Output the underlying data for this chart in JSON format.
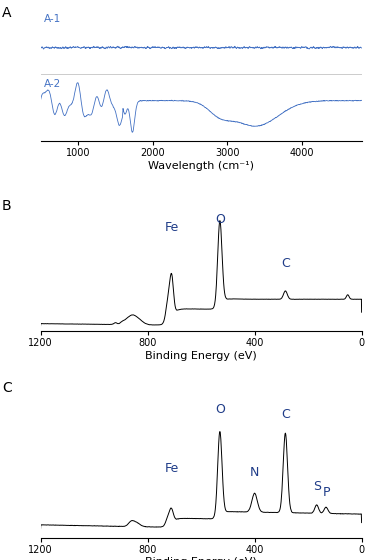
{
  "panel_A_label": "A",
  "panel_B_label": "B",
  "panel_C_label": "C",
  "line_color_A": "#4472C4",
  "line_color_BC": "#000000",
  "label_color": "#1F3C88",
  "wavelength_xlabel": "Wavelength (cm⁻¹)",
  "binding_xlabel": "Binding Energy (eV)",
  "wavelength_xlim": [
    500,
    4800
  ],
  "wavelength_xticks": [
    1000,
    2000,
    3000,
    4000
  ],
  "binding_xticks": [
    1200,
    800,
    400,
    0
  ],
  "A1_label": "A-1",
  "A2_label": "A-2"
}
